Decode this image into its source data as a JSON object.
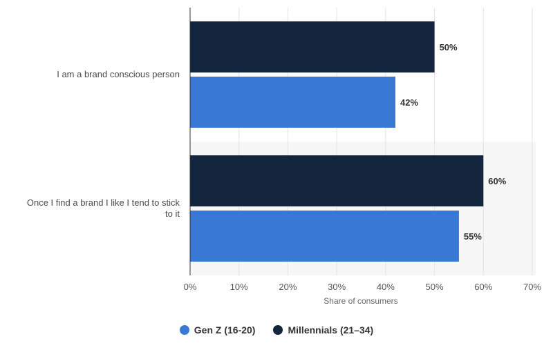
{
  "chart_data": {
    "type": "bar",
    "orientation": "horizontal",
    "categories": [
      [
        "I am a brand conscious person"
      ],
      [
        "Once I find a brand I like I tend to stick",
        "to it"
      ]
    ],
    "series": [
      {
        "name": "Millennials (21–34)",
        "color": "#14263d",
        "values": [
          50,
          60
        ],
        "labels": [
          "50%",
          "60%"
        ]
      },
      {
        "name": "Gen Z (16-20)",
        "color": "#3a78d6",
        "values": [
          42,
          55
        ],
        "labels": [
          "42%",
          "55%"
        ]
      }
    ],
    "xlabel": "Share of consumers",
    "xlim": [
      0,
      70
    ],
    "xticks": [
      0,
      10,
      20,
      30,
      40,
      50,
      60,
      70
    ],
    "xtick_labels": [
      "0%",
      "10%",
      "20%",
      "30%",
      "40%",
      "50%",
      "60%",
      "70%"
    ],
    "grid": true,
    "legend_position": "bottom",
    "legend_order": [
      1,
      0
    ]
  }
}
